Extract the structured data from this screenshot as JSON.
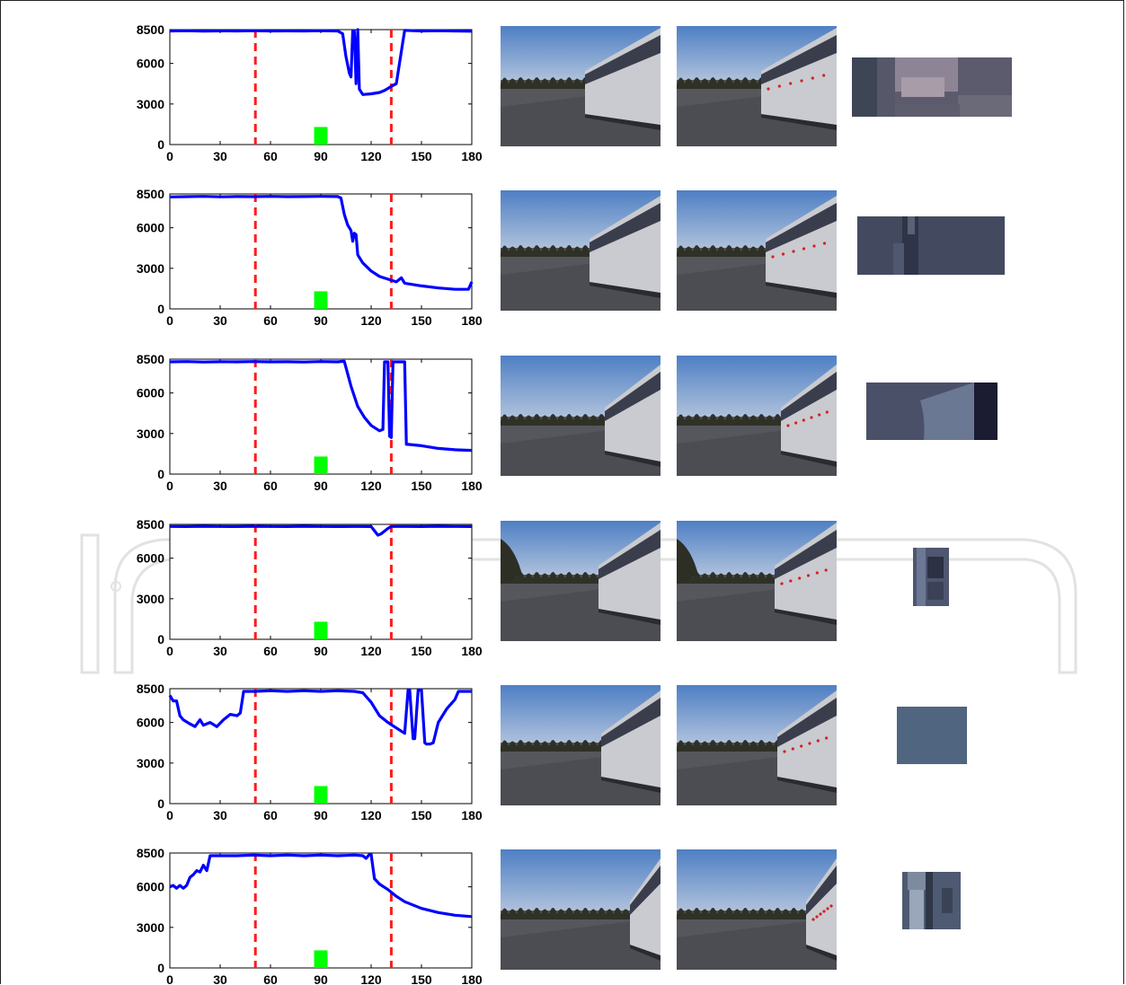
{
  "watermark": {
    "text": "InTech",
    "color": "#e8e8e8"
  },
  "colors": {
    "curve": "#0000ff",
    "threshold": "#ff1a1a",
    "marker": "#00ff00",
    "axis": "#000000"
  },
  "chart_data": [
    {
      "type": "line",
      "xlim": [
        0,
        180
      ],
      "ylim": [
        0,
        8500
      ],
      "xticks": [
        0,
        30,
        60,
        90,
        120,
        150,
        180
      ],
      "yticks": [
        0,
        3000,
        6000,
        8500
      ],
      "thresholds": [
        51,
        132
      ],
      "marker": {
        "x": [
          86,
          94
        ],
        "height": 1300
      },
      "x": [
        0,
        10,
        20,
        30,
        40,
        50,
        60,
        70,
        80,
        90,
        100,
        103,
        105,
        107,
        108,
        109,
        110,
        111,
        112,
        113,
        115,
        120,
        125,
        128,
        130,
        132,
        135,
        140,
        150,
        160,
        170,
        180
      ],
      "y": [
        8400,
        8420,
        8390,
        8410,
        8400,
        8420,
        8400,
        8410,
        8400,
        8420,
        8400,
        8200,
        6500,
        5300,
        5000,
        8400,
        8400,
        4500,
        8500,
        4100,
        3700,
        3750,
        3850,
        4000,
        4150,
        4300,
        4500,
        8450,
        8400,
        8420,
        8400,
        8380
      ]
    },
    {
      "type": "line",
      "xlim": [
        0,
        180
      ],
      "ylim": [
        0,
        8500
      ],
      "xticks": [
        0,
        30,
        60,
        90,
        120,
        150,
        180
      ],
      "yticks": [
        0,
        3000,
        6000,
        8500
      ],
      "thresholds": [
        51,
        132
      ],
      "marker": {
        "x": [
          86,
          94
        ],
        "height": 1300
      },
      "x": [
        0,
        10,
        20,
        30,
        40,
        50,
        60,
        70,
        80,
        90,
        100,
        102,
        104,
        106,
        108,
        109,
        110,
        111,
        112,
        115,
        120,
        125,
        130,
        135,
        138,
        140,
        145,
        150,
        160,
        170,
        178,
        180
      ],
      "y": [
        8280,
        8300,
        8320,
        8290,
        8310,
        8300,
        8320,
        8300,
        8310,
        8320,
        8310,
        8200,
        7000,
        6200,
        5800,
        5000,
        5600,
        5500,
        4000,
        3400,
        2800,
        2400,
        2200,
        2000,
        2300,
        1900,
        1800,
        1700,
        1550,
        1450,
        1450,
        2000
      ]
    },
    {
      "type": "line",
      "xlim": [
        0,
        180
      ],
      "ylim": [
        0,
        8500
      ],
      "xticks": [
        0,
        30,
        60,
        90,
        120,
        150,
        180
      ],
      "yticks": [
        0,
        3000,
        6000,
        8500
      ],
      "thresholds": [
        51,
        132
      ],
      "marker": {
        "x": [
          86,
          94
        ],
        "height": 1300
      },
      "x": [
        0,
        10,
        20,
        30,
        40,
        50,
        60,
        70,
        80,
        90,
        100,
        104,
        108,
        112,
        116,
        120,
        125,
        127,
        128,
        130,
        131,
        132,
        133,
        134,
        140,
        141,
        142,
        150,
        160,
        170,
        180
      ],
      "y": [
        8300,
        8320,
        8290,
        8310,
        8300,
        8320,
        8300,
        8310,
        8290,
        8320,
        8300,
        8350,
        6500,
        5000,
        4200,
        3600,
        3200,
        3300,
        8300,
        8300,
        2800,
        2700,
        8300,
        8300,
        8300,
        2200,
        2200,
        2100,
        1900,
        1800,
        1750
      ]
    },
    {
      "type": "line",
      "xlim": [
        0,
        180
      ],
      "ylim": [
        0,
        8500
      ],
      "xticks": [
        0,
        30,
        60,
        90,
        120,
        150,
        180
      ],
      "yticks": [
        0,
        3000,
        6000,
        8500
      ],
      "thresholds": [
        51,
        132
      ],
      "marker": {
        "x": [
          86,
          94
        ],
        "height": 1300
      },
      "x": [
        0,
        10,
        20,
        30,
        40,
        50,
        60,
        70,
        80,
        90,
        100,
        110,
        120,
        124,
        126,
        128,
        130,
        132,
        140,
        150,
        160,
        170,
        180
      ],
      "y": [
        8350,
        8340,
        8360,
        8350,
        8340,
        8360,
        8350,
        8340,
        8360,
        8350,
        8340,
        8350,
        8340,
        7700,
        7800,
        8000,
        8200,
        8350,
        8350,
        8340,
        8360,
        8350,
        8340
      ]
    },
    {
      "type": "line",
      "xlim": [
        0,
        180
      ],
      "ylim": [
        0,
        8500
      ],
      "xticks": [
        0,
        30,
        60,
        90,
        120,
        150,
        180
      ],
      "yticks": [
        0,
        3000,
        6000,
        8500
      ],
      "thresholds": [
        51,
        132
      ],
      "marker": {
        "x": [
          86,
          94
        ],
        "height": 1300
      },
      "x": [
        0,
        2,
        4,
        6,
        8,
        12,
        15,
        18,
        20,
        24,
        28,
        32,
        36,
        40,
        42,
        44,
        50,
        60,
        70,
        80,
        90,
        100,
        110,
        115,
        120,
        125,
        130,
        135,
        140,
        142,
        143,
        145,
        146,
        148,
        150,
        152,
        153,
        155,
        157,
        160,
        165,
        170,
        172,
        175,
        180
      ],
      "y": [
        8000,
        7600,
        7600,
        6500,
        6200,
        5900,
        5700,
        6200,
        5800,
        6000,
        5700,
        6200,
        6600,
        6500,
        6700,
        8300,
        8300,
        8350,
        8300,
        8350,
        8300,
        8350,
        8300,
        8200,
        7500,
        6500,
        6000,
        5600,
        5200,
        8400,
        8400,
        4800,
        4800,
        8400,
        8400,
        4500,
        4400,
        4400,
        4500,
        6000,
        7000,
        7700,
        8300,
        8300,
        8300
      ]
    },
    {
      "type": "line",
      "xlim": [
        0,
        180
      ],
      "ylim": [
        0,
        8500
      ],
      "xticks": [
        0,
        30,
        60,
        90,
        120,
        150,
        180
      ],
      "yticks": [
        0,
        3000,
        6000,
        8500
      ],
      "thresholds": [
        51,
        132
      ],
      "marker": {
        "x": [
          86,
          94
        ],
        "height": 1300
      },
      "x": [
        0,
        2,
        4,
        6,
        8,
        10,
        12,
        14,
        16,
        18,
        20,
        22,
        24,
        26,
        30,
        40,
        50,
        60,
        70,
        80,
        90,
        100,
        110,
        115,
        117,
        119,
        120,
        122,
        125,
        130,
        135,
        140,
        150,
        160,
        170,
        180
      ],
      "y": [
        6000,
        6100,
        5900,
        6100,
        5900,
        6100,
        6700,
        6900,
        7200,
        7100,
        7600,
        7200,
        8300,
        8300,
        8300,
        8300,
        8350,
        8300,
        8350,
        8300,
        8350,
        8300,
        8350,
        8300,
        8100,
        8400,
        8400,
        6600,
        6200,
        5800,
        5300,
        4900,
        4400,
        4100,
        3900,
        3800
      ]
    }
  ]
}
